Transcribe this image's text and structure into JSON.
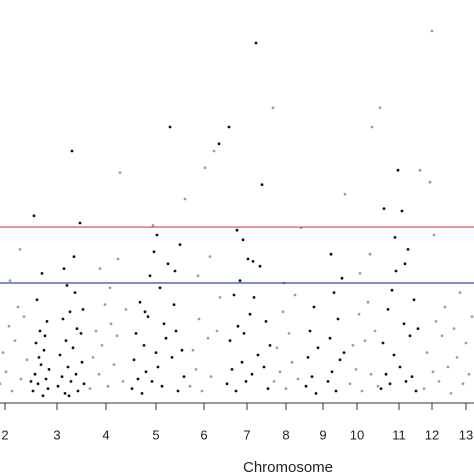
{
  "chart_data": {
    "type": "scatter",
    "x_label": "Chromosome",
    "xlim": [
      0,
      474
    ],
    "ylim": [
      0,
      16.5
    ],
    "xticks": [
      {
        "value": 5,
        "label": "2"
      },
      {
        "value": 57,
        "label": "3"
      },
      {
        "value": 106,
        "label": "4"
      },
      {
        "value": 156,
        "label": "5"
      },
      {
        "value": 204,
        "label": "6"
      },
      {
        "value": 247,
        "label": "7"
      },
      {
        "value": 286,
        "label": "8"
      },
      {
        "value": 323,
        "label": "9"
      },
      {
        "value": 357,
        "label": "10"
      },
      {
        "value": 399,
        "label": "11"
      },
      {
        "value": 432,
        "label": "12"
      },
      {
        "value": 466,
        "label": "13"
      }
    ],
    "hlines": [
      {
        "value": 7.33,
        "color": "#e8384f"
      },
      {
        "value": 5,
        "color": "#3344bb"
      }
    ],
    "series": [
      {
        "color": "#111111",
        "x": [
          33,
          35,
          36,
          38,
          40,
          41,
          43,
          44,
          46,
          47,
          48,
          37,
          42,
          34,
          39,
          45,
          31,
          49,
          58,
          60,
          62,
          63,
          65,
          66,
          68,
          70,
          71,
          72,
          73,
          75,
          76,
          78,
          80,
          81,
          82,
          84,
          67,
          64,
          77,
          69,
          74,
          83,
          132,
          134,
          136,
          138,
          140,
          142,
          144,
          146,
          148,
          150,
          152,
          154,
          156,
          158,
          160,
          162,
          164,
          166,
          168,
          170,
          172,
          174,
          176,
          178,
          180,
          182,
          184,
          157,
          175,
          145,
          227,
          229,
          230,
          232,
          234,
          236,
          238,
          240,
          242,
          244,
          246,
          248,
          250,
          252,
          254,
          256,
          258,
          260,
          262,
          264,
          266,
          268,
          270,
          219,
          237,
          243,
          253,
          306,
          308,
          310,
          312,
          314,
          316,
          318,
          328,
          330,
          332,
          334,
          336,
          338,
          340,
          342,
          344,
          331,
          381,
          383,
          384,
          386,
          388,
          390,
          392,
          394,
          396,
          398,
          400,
          402,
          404,
          406,
          408,
          410,
          412,
          414,
          416,
          418,
          395,
          405
        ],
        "values": [
          0.5,
          1.2,
          2.5,
          0.8,
          3.0,
          1.6,
          0.3,
          2.2,
          1.0,
          3.4,
          0.6,
          4.3,
          5.4,
          7.8,
          1.9,
          2.8,
          0.9,
          1.4,
          0.7,
          2.0,
          1.1,
          3.5,
          0.4,
          2.6,
          1.5,
          3.8,
          0.9,
          10.5,
          2.3,
          4.6,
          1.2,
          0.5,
          7.5,
          2.9,
          1.7,
          0.8,
          4.9,
          5.6,
          3.1,
          0.3,
          6.1,
          3.9,
          0.6,
          1.8,
          2.9,
          1.0,
          4.2,
          0.4,
          2.4,
          1.3,
          3.6,
          5.3,
          0.9,
          6.3,
          2.1,
          1.5,
          4.8,
          0.7,
          3.3,
          2.7,
          5.8,
          11.5,
          1.9,
          4.1,
          3.0,
          0.5,
          6.6,
          2.2,
          1.1,
          7.0,
          5.5,
          3.8,
          0.8,
          11.5,
          2.6,
          1.4,
          4.5,
          0.5,
          3.2,
          5.1,
          1.7,
          2.9,
          0.9,
          6.0,
          3.7,
          1.2,
          4.4,
          15.0,
          2.0,
          5.7,
          9.1,
          1.5,
          3.4,
          0.6,
          2.4,
          10.8,
          7.2,
          6.8,
          5.9,
          0.7,
          1.9,
          3.0,
          1.1,
          4.0,
          0.4,
          2.3,
          0.9,
          2.7,
          1.3,
          4.6,
          0.5,
          3.5,
          1.8,
          5.2,
          2.1,
          6.2,
          0.6,
          2.5,
          8.1,
          1.2,
          3.9,
          0.8,
          4.7,
          2.0,
          5.5,
          9.7,
          1.5,
          8.0,
          3.3,
          0.9,
          6.4,
          2.8,
          1.1,
          4.3,
          0.5,
          3.1,
          6.9,
          5.8
        ]
      },
      {
        "color": "#a0a0a0",
        "x": [
          0,
          3,
          6,
          9,
          12,
          15,
          18,
          21,
          24,
          27,
          10,
          20,
          90,
          93,
          96,
          99,
          102,
          105,
          108,
          111,
          114,
          117,
          120,
          123,
          126,
          100,
          110,
          118,
          153,
          185,
          190,
          193,
          196,
          199,
          202,
          205,
          208,
          211,
          214,
          217,
          220,
          198,
          210,
          274,
          273,
          277,
          280,
          283,
          286,
          289,
          292,
          295,
          298,
          301,
          284,
          350,
          345,
          353,
          356,
          359,
          362,
          365,
          368,
          371,
          372,
          375,
          378,
          380,
          360,
          370,
          424,
          420,
          427,
          430,
          432,
          433,
          436,
          439,
          442,
          445,
          448,
          451,
          454,
          457,
          460,
          463,
          466,
          469,
          472,
          434
        ],
        "values": [
          0.8,
          2.1,
          1.3,
          3.2,
          0.5,
          2.6,
          4.0,
          1.0,
          3.6,
          1.8,
          5.1,
          6.4,
          0.6,
          1.9,
          3.0,
          1.2,
          2.4,
          4.1,
          0.7,
          3.3,
          1.6,
          2.8,
          9.6,
          0.9,
          3.9,
          5.6,
          4.8,
          6.0,
          7.4,
          8.5,
          0.7,
          2.2,
          1.4,
          3.5,
          0.5,
          9.8,
          2.7,
          1.1,
          10.5,
          3.0,
          4.4,
          5.3,
          6.1,
          0.9,
          12.3,
          2.3,
          1.3,
          3.8,
          0.6,
          2.9,
          1.7,
          4.5,
          1.0,
          7.3,
          5.0,
          0.8,
          8.7,
          2.4,
          1.4,
          3.7,
          0.5,
          2.6,
          4.2,
          1.2,
          11.5,
          3.0,
          0.7,
          12.3,
          5.4,
          6.2,
          0.6,
          9.7,
          2.1,
          9.2,
          15.5,
          1.3,
          3.4,
          0.9,
          2.8,
          4.0,
          1.5,
          0.4,
          3.1,
          1.9,
          4.6,
          0.8,
          2.5,
          1.2,
          3.6,
          7.0
        ]
      }
    ]
  }
}
